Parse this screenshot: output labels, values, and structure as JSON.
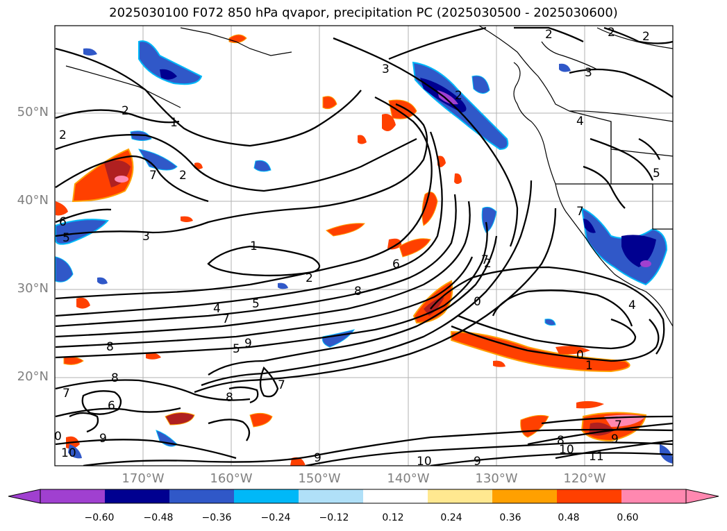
{
  "title": "2025030100 F072 850 hPa qvapor, precipitation PC (2025030500 - 2025030600)",
  "lat_labels": [
    "50°N",
    "40°N",
    "30°N",
    "20°N"
  ],
  "lon_labels": [
    "170°W",
    "160°W",
    "150°W",
    "140°W",
    "130°W",
    "120°W"
  ],
  "colorbar": {
    "ticks": [
      "−0.60",
      "−0.48",
      "−0.36",
      "−0.24",
      "−0.12",
      "0.12",
      "0.24",
      "0.36",
      "0.48",
      "0.60"
    ],
    "colors": [
      "#a040d0",
      "#000090",
      "#3058c8",
      "#00b8f8",
      "#b0e0f8",
      "#ffffff",
      "#ffe890",
      "#ffa000",
      "#ff4000",
      "#b02020",
      "#ff88b0",
      "#ff88b0"
    ],
    "low_extend_color": "#a040d0",
    "high_extend_color": "#ff88b0"
  },
  "contour_labels": [
    "2",
    "1",
    "2",
    "7",
    "2",
    "6",
    "5",
    "3",
    "1",
    "2",
    "4",
    "5",
    "7",
    "8",
    "8",
    "5",
    "9",
    "8",
    "6",
    "7",
    "0",
    "10",
    "9",
    "8",
    "9",
    "10",
    "9",
    "3",
    "2",
    "3",
    "4",
    "5",
    "7",
    "6",
    "7",
    "0",
    "0",
    "1",
    "8",
    "10",
    "11",
    "9",
    "2",
    "2",
    "2",
    "2",
    "4",
    "7",
    "7"
  ]
}
